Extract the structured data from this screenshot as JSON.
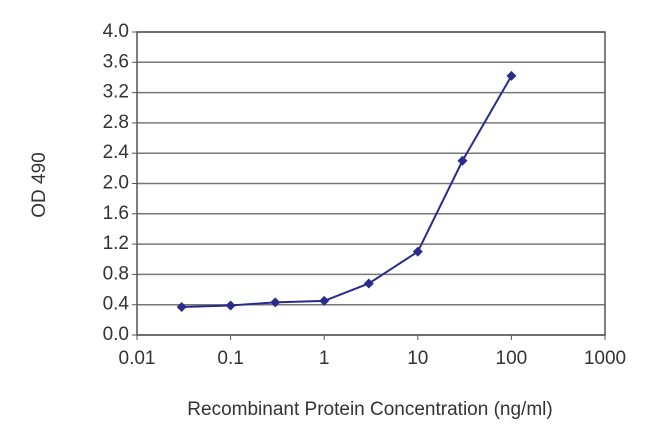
{
  "chart_data": {
    "type": "line",
    "xlabel": "Recombinant Protein Concentration (ng/ml)",
    "ylabel": "OD 490",
    "x": [
      0.03,
      0.1,
      0.3,
      1,
      3,
      10,
      30,
      100
    ],
    "values": [
      0.37,
      0.39,
      0.43,
      0.45,
      0.68,
      1.1,
      2.3,
      3.42
    ],
    "color": "#2b2b8c",
    "xscale": "log",
    "xlim": [
      0.01,
      1000
    ],
    "xticks": [
      0.01,
      0.1,
      1,
      10,
      100,
      1000
    ],
    "ylim": [
      0,
      4
    ],
    "yticks": [
      {
        "value": 0,
        "label": "0.0"
      },
      0.4,
      0.8,
      1.2,
      1.6,
      {
        "value": 2,
        "label": "2.0"
      },
      2.4,
      2.8,
      3.2,
      3.6,
      {
        "value": 4,
        "label": "4.0"
      }
    ],
    "grid": true
  }
}
